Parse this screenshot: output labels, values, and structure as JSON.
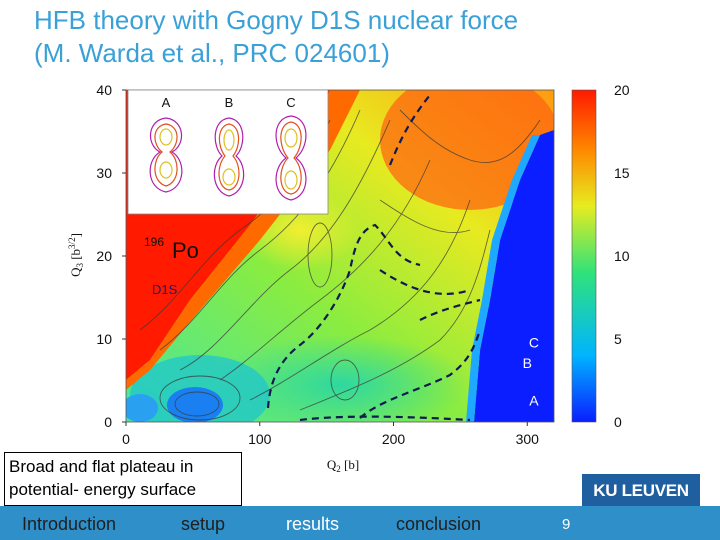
{
  "slide": {
    "title_line1": "HFB theory with Gogny D1S nuclear force",
    "title_line2": "(M. Warda et al., PRC 024601)",
    "note_line1": "Broad and flat plateau in",
    "note_line2": "potential- energy surface",
    "logo": "KU LEUVEN",
    "page_number": "9",
    "nav": [
      {
        "label": "Introduction",
        "active": false
      },
      {
        "label": "setup",
        "active": false
      },
      {
        "label": "results",
        "active": true
      },
      {
        "label": "conclusion",
        "active": false
      }
    ]
  },
  "chart_data": {
    "type": "heatmap",
    "xlabel": "Q2 [b]",
    "ylabel": "Q3 [b3/2]",
    "xlim": [
      0,
      320
    ],
    "ylim": [
      0,
      40
    ],
    "x_ticks": [
      "0",
      "100",
      "200",
      "300"
    ],
    "y_ticks": [
      "0",
      "10",
      "20",
      "30",
      "40"
    ],
    "colorbar": {
      "range": [
        0,
        20
      ],
      "ticks": [
        "0",
        "5",
        "10",
        "15",
        "20"
      ],
      "colors": [
        "#0a1eff",
        "#00b4ff",
        "#30e27a",
        "#e6ec20",
        "#ff8800",
        "#ff1a00"
      ]
    },
    "labels": {
      "nucleus_mass": "196",
      "nucleus": "Po",
      "force": "D1S"
    },
    "paths": [
      {
        "name": "A",
        "x": 305,
        "y": 2
      },
      {
        "name": "B",
        "x": 300,
        "y": 6.5
      },
      {
        "name": "C",
        "x": 305,
        "y": 9
      }
    ],
    "inset_shapes": [
      "A",
      "B",
      "C"
    ]
  }
}
